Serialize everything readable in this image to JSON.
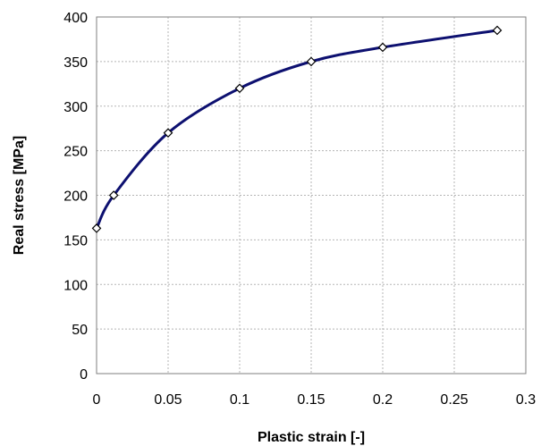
{
  "chart_data": {
    "type": "line",
    "title": "",
    "xlabel": "Plastic strain [-]",
    "ylabel": "Real stress [MPa]",
    "xlim": [
      0,
      0.3
    ],
    "ylim": [
      0,
      400
    ],
    "x_ticks": [
      "0",
      "0.05",
      "0.1",
      "0.15",
      "0.2",
      "0.25",
      "0.3"
    ],
    "y_ticks": [
      "0",
      "50",
      "100",
      "150",
      "200",
      "250",
      "300",
      "350",
      "400"
    ],
    "grid": true,
    "legend": "none",
    "series": [
      {
        "color": "#0d1070",
        "marker": "diamond",
        "x": [
          0,
          0.012,
          0.05,
          0.1,
          0.15,
          0.2,
          0.28
        ],
        "y": [
          163,
          200,
          270,
          320,
          350,
          366,
          385
        ]
      }
    ]
  }
}
